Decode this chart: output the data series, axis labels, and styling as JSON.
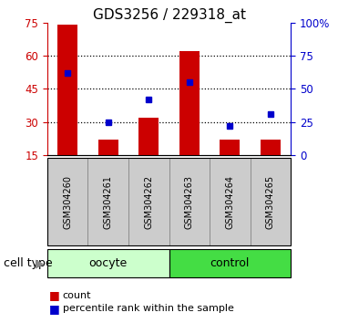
{
  "title": "GDS3256 / 229318_at",
  "samples": [
    "GSM304260",
    "GSM304261",
    "GSM304262",
    "GSM304263",
    "GSM304264",
    "GSM304265"
  ],
  "counts": [
    74,
    22,
    32,
    62,
    22,
    22
  ],
  "percentiles": [
    62,
    25,
    42,
    55,
    22,
    31
  ],
  "groups": [
    {
      "label": "oocyte",
      "indices": [
        0,
        1,
        2
      ],
      "color": "#ccffcc"
    },
    {
      "label": "control",
      "indices": [
        3,
        4,
        5
      ],
      "color": "#44dd44"
    }
  ],
  "left_ylim": [
    15,
    75
  ],
  "right_ylim": [
    0,
    100
  ],
  "left_yticks": [
    15,
    30,
    45,
    60,
    75
  ],
  "right_yticks": [
    0,
    25,
    50,
    75,
    100
  ],
  "right_yticklabels": [
    "0",
    "25",
    "50",
    "75",
    "100%"
  ],
  "bar_color": "#cc0000",
  "marker_color": "#0000cc",
  "title_fontsize": 11,
  "axis_label_color_left": "#cc0000",
  "axis_label_color_right": "#0000cc",
  "legend_count_label": "count",
  "legend_percentile_label": "percentile rank within the sample",
  "cell_type_label": "cell type",
  "bar_width": 0.5,
  "sample_box_color": "#cccccc",
  "grid_yticks": [
    30,
    45,
    60
  ]
}
